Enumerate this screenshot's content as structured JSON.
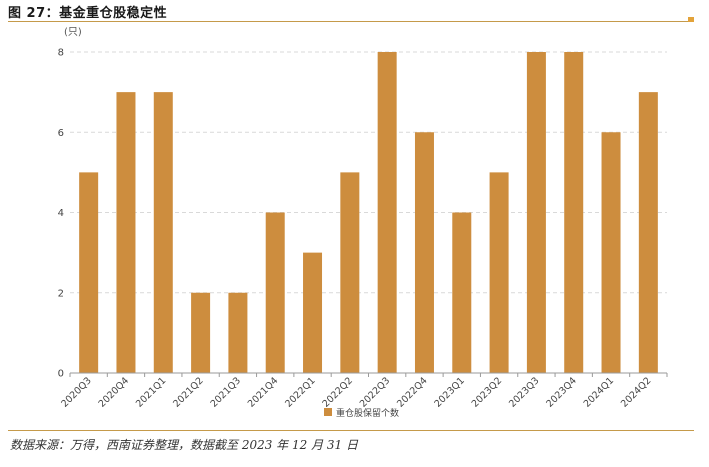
{
  "figure": {
    "title": "图 27：基金重仓股稳定性",
    "source": "数据来源：万得，西南证券整理，数据截至 2023 年 12 月 31 日"
  },
  "chart_data": {
    "type": "bar",
    "title": "",
    "xlabel": "",
    "ylabel": "(只)",
    "ylim": [
      0,
      8
    ],
    "yticks": [
      0,
      2,
      4,
      6,
      8
    ],
    "grid": true,
    "legend_position": "bottom-center",
    "categories": [
      "2020Q3",
      "2020Q4",
      "2021Q1",
      "2021Q2",
      "2021Q3",
      "2021Q4",
      "2022Q1",
      "2022Q2",
      "2022Q3",
      "2022Q4",
      "2023Q1",
      "2023Q2",
      "2023Q3",
      "2023Q4",
      "2024Q1",
      "2024Q2"
    ],
    "series": [
      {
        "name": "重仓股保留个数",
        "color": "#cd8d3e",
        "values": [
          5,
          7,
          7,
          2,
          2,
          4,
          3,
          5,
          8,
          6,
          4,
          5,
          8,
          8,
          6,
          7
        ]
      }
    ]
  }
}
